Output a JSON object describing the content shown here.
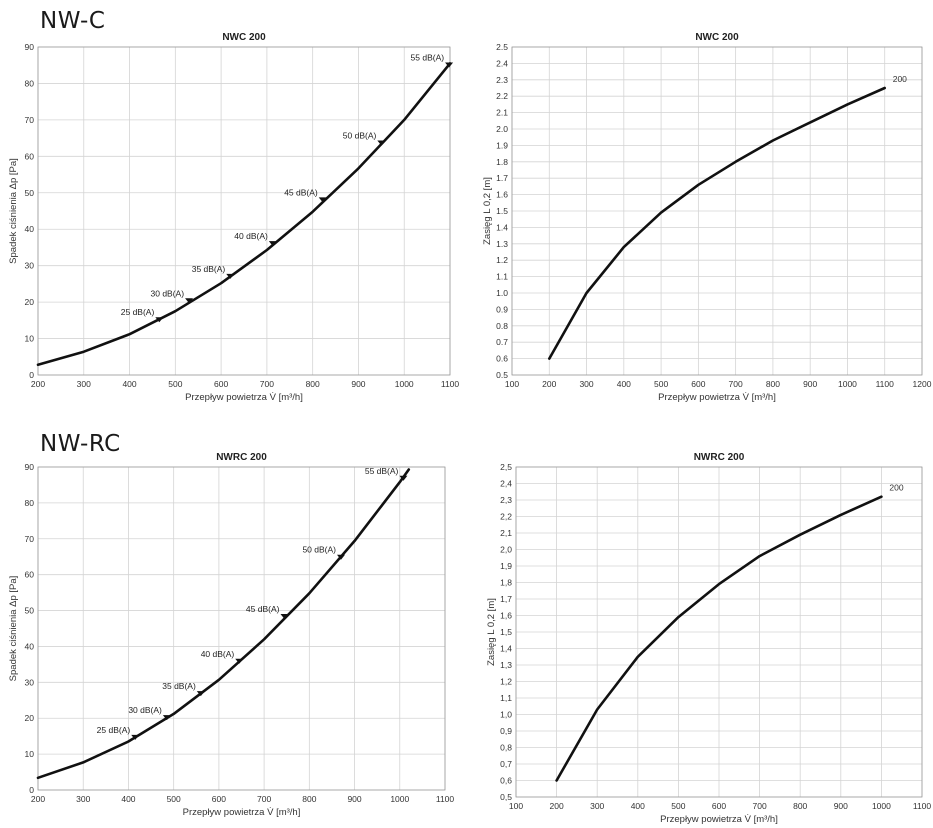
{
  "sections": [
    {
      "title": "NW-C"
    },
    {
      "title": "NW-RC"
    }
  ],
  "colors": {
    "curve": "#111111",
    "grid": "#d4d4d4",
    "axis": "#9a9a9a"
  },
  "chart_data": [
    {
      "type": "line",
      "title": "NWC 200",
      "xlabel": "Przepływ powietrza V̇ [m³/h]",
      "ylabel": "Spadek ciśnienia Δp [Pa]",
      "xlim": [
        200,
        1100
      ],
      "ylim": [
        0,
        90
      ],
      "xticks": [
        "200",
        "300",
        "400",
        "500",
        "600",
        "700",
        "800",
        "900",
        "1000",
        "1100"
      ],
      "yticks": [
        "0",
        "10",
        "20",
        "30",
        "40",
        "50",
        "60",
        "70",
        "80",
        "90"
      ],
      "grid": true,
      "series": [
        {
          "x": [
            200,
            300,
            400,
            500,
            600,
            700,
            800,
            900,
            1000,
            1100
          ],
          "y": [
            2.8,
            6.4,
            11.2,
            17.5,
            25.2,
            34.3,
            44.8,
            56.7,
            70.0,
            85.5
          ]
        }
      ],
      "points": [
        {
          "x": 465,
          "y": 15.3,
          "label": "25 dB(A)"
        },
        {
          "x": 530,
          "y": 20.5,
          "label": "30 dB(A)"
        },
        {
          "x": 620,
          "y": 27.2,
          "label": "35 dB(A)"
        },
        {
          "x": 713,
          "y": 36.2,
          "label": "40 dB(A)"
        },
        {
          "x": 822,
          "y": 48.2,
          "label": "45 dB(A)"
        },
        {
          "x": 950,
          "y": 63.8,
          "label": "50 dB(A)"
        },
        {
          "x": 1098,
          "y": 85.2,
          "label": "55 dB(A)"
        }
      ]
    },
    {
      "type": "line",
      "title": "NWC 200",
      "xlabel": "Przepływ powietrza V̇ [m³/h]",
      "ylabel": "Zasięg L 0,2 [m]",
      "xlim": [
        100,
        1200
      ],
      "ylim": [
        0.5,
        2.5
      ],
      "xticks": [
        "100",
        "200",
        "300",
        "400",
        "500",
        "600",
        "700",
        "800",
        "900",
        "1000",
        "1100",
        "1200"
      ],
      "yticks": [
        "0.5",
        "0.6",
        "0.7",
        "0.8",
        "0.9",
        "1.0",
        "1.1",
        "1.2",
        "1.3",
        "1.4",
        "1.5",
        "1.6",
        "1.7",
        "1.8",
        "1.9",
        "2.0",
        "2.1",
        "2.2",
        "2.3",
        "2.4",
        "2.5"
      ],
      "grid": true,
      "series": [
        {
          "name": "200",
          "x": [
            200,
            300,
            400,
            500,
            600,
            700,
            800,
            900,
            1000,
            1100
          ],
          "y": [
            0.6,
            1.0,
            1.28,
            1.49,
            1.66,
            1.8,
            1.93,
            2.04,
            2.15,
            2.25
          ]
        }
      ]
    },
    {
      "type": "line",
      "title": "NWRC 200",
      "xlabel": "Przepływ powietrza V̇ [m³/h]",
      "ylabel": "Spadek ciśnienia Δp [Pa]",
      "xlim": [
        200,
        1100
      ],
      "ylim": [
        0,
        90
      ],
      "xticks": [
        "200",
        "300",
        "400",
        "500",
        "600",
        "700",
        "800",
        "900",
        "1000",
        "1100"
      ],
      "yticks": [
        "0",
        "10",
        "20",
        "30",
        "40",
        "50",
        "60",
        "70",
        "80",
        "90"
      ],
      "grid": true,
      "series": [
        {
          "x": [
            200,
            300,
            400,
            500,
            600,
            700,
            800,
            900,
            1000,
            1020
          ],
          "y": [
            3.4,
            7.7,
            13.5,
            21.2,
            30.7,
            42.0,
            54.8,
            69.4,
            85.8,
            89.3
          ]
        }
      ],
      "points": [
        {
          "x": 415,
          "y": 14.8,
          "label": "25 dB(A)"
        },
        {
          "x": 485,
          "y": 20.3,
          "label": "30 dB(A)"
        },
        {
          "x": 560,
          "y": 27.0,
          "label": "35 dB(A)"
        },
        {
          "x": 645,
          "y": 36.0,
          "label": "40 dB(A)"
        },
        {
          "x": 745,
          "y": 48.5,
          "label": "45 dB(A)"
        },
        {
          "x": 870,
          "y": 65.0,
          "label": "50 dB(A)"
        },
        {
          "x": 1008,
          "y": 87.0,
          "label": "55 dB(A)"
        }
      ]
    },
    {
      "type": "line",
      "title": "NWRC 200",
      "xlabel": "Przepływ powietrza V̇ [m³/h]",
      "ylabel": "Zasięg L 0,2 [m]",
      "xlim": [
        100,
        1100
      ],
      "ylim": [
        0.5,
        2.5
      ],
      "xticks": [
        "100",
        "200",
        "300",
        "400",
        "500",
        "600",
        "700",
        "800",
        "900",
        "1000",
        "1100"
      ],
      "yticks": [
        "0,5",
        "0,6",
        "0,7",
        "0,8",
        "0,9",
        "1,0",
        "1,1",
        "1,2",
        "1,3",
        "1,4",
        "1,5",
        "1,6",
        "1,7",
        "1,8",
        "1,9",
        "2,0",
        "2,1",
        "2,2",
        "2,3",
        "2,4",
        "2,5"
      ],
      "grid": true,
      "series": [
        {
          "name": "200",
          "x": [
            200,
            300,
            400,
            500,
            600,
            700,
            800,
            900,
            1000
          ],
          "y": [
            0.6,
            1.03,
            1.35,
            1.59,
            1.79,
            1.96,
            2.09,
            2.21,
            2.32
          ]
        }
      ]
    }
  ]
}
